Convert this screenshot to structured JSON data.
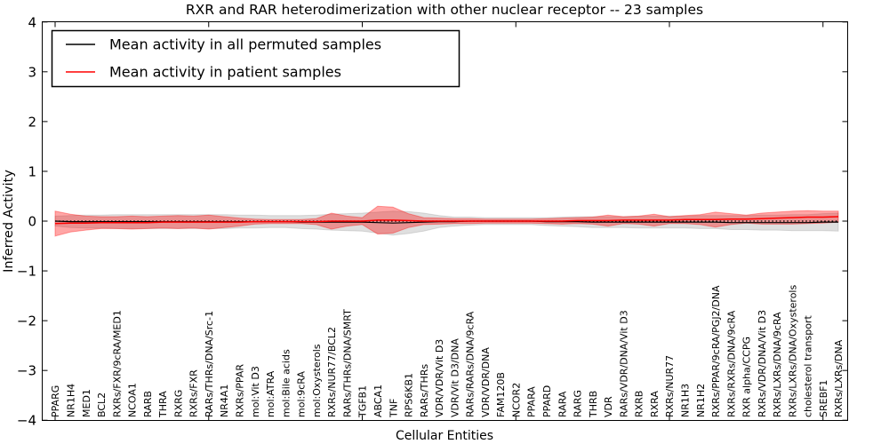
{
  "chart": {
    "frame_color": "#000000",
    "background": "#ffffff"
  },
  "chart_data": {
    "type": "line",
    "title": "RXR and RAR heterodimerization with other nuclear receptor -- 23 samples",
    "xlabel": "Cellular Entities",
    "ylabel": "Inferred Activity",
    "ylim": [
      -4,
      4
    ],
    "yticks": [
      -4,
      -3,
      -2,
      -1,
      0,
      1,
      2,
      3,
      4
    ],
    "grid": false,
    "legend_position": "upper left",
    "zero_line_style": "dotted",
    "categories": [
      "PPARG",
      "NR1H4",
      "MED1",
      "BCL2",
      "RXRs/FXR/9cRA/MED1",
      "NCOA1",
      "RARB",
      "THRA",
      "RXRG",
      "RXRs/FXR",
      "RARs/THRs/DNA/Src-1",
      "NR4A1",
      "RXRs/PPAR",
      "mol:Vit D3",
      "mol:ATRA",
      "mol:Bile acids",
      "mol:9cRA",
      "mol:Oxysterols",
      "RXRs/NUR77/BCL2",
      "RARs/THRs/DNA/SMRT",
      "TGFB1",
      "ABCA1",
      "TNF",
      "RPS6KB1",
      "RARs/THRs",
      "VDR/VDR/Vit D3",
      "VDR/Vit D3/DNA",
      "RARs/RARs/DNA/9cRA",
      "VDR/VDR/DNA",
      "FAM120B",
      "NCOR2",
      "PPARA",
      "PPARD",
      "RARA",
      "RARG",
      "THRB",
      "VDR",
      "RARs/VDR/DNA/Vit D3",
      "RXRB",
      "RXRA",
      "RXRs/NUR77",
      "NR1H3",
      "NR1H2",
      "RXRs/PPAR/9cRA/PGJ2/DNA",
      "RXRs/RXRs/DNA/9cRA",
      "RXR alpha/CCPG",
      "RXRs/VDR/DNA/Vit D3",
      "RXRs/LXRs/DNA/9cRA",
      "RXRs/LXRs/DNA/Oxysterols",
      "cholesterol transport",
      "SREBF1",
      "RXRs/LXRs/DNA"
    ],
    "series": [
      {
        "name": "Mean activity in all permuted samples",
        "color": "#000000",
        "band_color": "#808080",
        "values": [
          0,
          -0.01,
          -0.01,
          -0.01,
          -0.01,
          -0.01,
          -0.01,
          -0.01,
          -0.01,
          -0.01,
          -0.01,
          -0.01,
          -0.01,
          -0.01,
          -0.01,
          -0.01,
          -0.02,
          -0.02,
          -0.02,
          -0.02,
          -0.02,
          -0.03,
          -0.04,
          -0.03,
          -0.02,
          -0.01,
          -0.01,
          0,
          0,
          0,
          0,
          0,
          -0.01,
          -0.01,
          -0.01,
          -0.02,
          -0.02,
          -0.02,
          -0.02,
          -0.02,
          -0.02,
          -0.02,
          -0.02,
          -0.02,
          -0.03,
          -0.03,
          -0.03,
          -0.03,
          -0.03,
          -0.03,
          -0.02,
          -0.02
        ],
        "band_halfwidth": [
          0.1,
          0.12,
          0.13,
          0.13,
          0.14,
          0.14,
          0.14,
          0.14,
          0.14,
          0.14,
          0.14,
          0.14,
          0.13,
          0.13,
          0.12,
          0.12,
          0.13,
          0.14,
          0.16,
          0.17,
          0.18,
          0.21,
          0.24,
          0.22,
          0.18,
          0.12,
          0.09,
          0.08,
          0.07,
          0.07,
          0.07,
          0.07,
          0.08,
          0.09,
          0.1,
          0.11,
          0.11,
          0.11,
          0.12,
          0.12,
          0.12,
          0.12,
          0.13,
          0.13,
          0.14,
          0.14,
          0.15,
          0.15,
          0.16,
          0.16,
          0.17,
          0.18
        ]
      },
      {
        "name": "Mean activity in patient samples",
        "color": "#ff0000",
        "band_color": "#ff0000",
        "values": [
          -0.05,
          -0.04,
          -0.04,
          -0.03,
          -0.03,
          -0.03,
          -0.03,
          -0.02,
          -0.02,
          -0.02,
          -0.02,
          -0.02,
          -0.02,
          -0.01,
          -0.01,
          -0.01,
          -0.01,
          -0.01,
          0,
          0,
          0,
          0.02,
          0.02,
          0.01,
          0,
          0,
          0,
          0,
          0,
          0,
          0,
          0,
          0,
          0,
          0.01,
          0.01,
          0.01,
          0.02,
          0.02,
          0.02,
          0.02,
          0.03,
          0.03,
          0.03,
          0.04,
          0.04,
          0.05,
          0.06,
          0.07,
          0.08,
          0.08,
          0.09
        ],
        "band_halfwidth": [
          0.25,
          0.18,
          0.14,
          0.12,
          0.12,
          0.13,
          0.12,
          0.12,
          0.13,
          0.12,
          0.14,
          0.11,
          0.08,
          0.05,
          0.04,
          0.04,
          0.04,
          0.06,
          0.16,
          0.1,
          0.07,
          0.28,
          0.26,
          0.14,
          0.07,
          0.06,
          0.05,
          0.05,
          0.04,
          0.04,
          0.04,
          0.04,
          0.05,
          0.06,
          0.06,
          0.07,
          0.11,
          0.07,
          0.08,
          0.12,
          0.07,
          0.08,
          0.1,
          0.15,
          0.11,
          0.08,
          0.11,
          0.12,
          0.13,
          0.13,
          0.12,
          0.11
        ]
      }
    ]
  }
}
